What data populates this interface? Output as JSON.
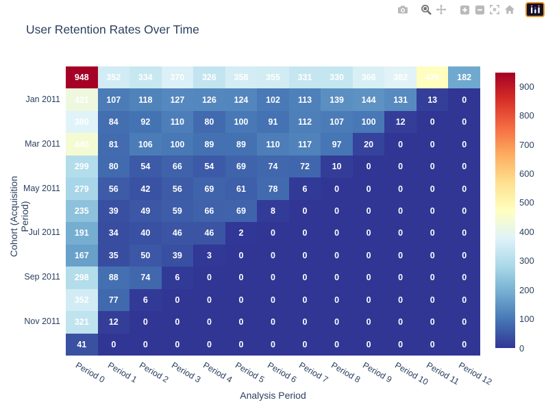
{
  "chart_data": {
    "type": "heatmap",
    "title": "User Retention Rates Over Time",
    "xlabel": "Analysis Period",
    "ylabel": "Cohort (Acquisition Period)",
    "x_ticks": [
      "Period 0",
      "Period 1",
      "Period 2",
      "Period 3",
      "Period 4",
      "Period 5",
      "Period 6",
      "Period 7",
      "Period 8",
      "Period 9",
      "Period 10",
      "Period 11",
      "Period 12"
    ],
    "y_ticks": [
      "",
      "Jan 2011",
      "",
      "Mar 2011",
      "",
      "May 2011",
      "",
      "Jul 2011",
      "",
      "Sep 2011",
      "",
      "Nov 2011",
      ""
    ],
    "z": [
      [
        948,
        352,
        334,
        370,
        326,
        358,
        355,
        331,
        330,
        366,
        382,
        476,
        182
      ],
      [
        421,
        107,
        118,
        127,
        126,
        124,
        102,
        113,
        139,
        144,
        131,
        13,
        0
      ],
      [
        380,
        84,
        92,
        110,
        80,
        100,
        91,
        112,
        107,
        100,
        12,
        0,
        0
      ],
      [
        440,
        81,
        106,
        100,
        89,
        89,
        110,
        117,
        97,
        20,
        0,
        0,
        0
      ],
      [
        299,
        80,
        54,
        66,
        54,
        69,
        74,
        72,
        10,
        0,
        0,
        0,
        0
      ],
      [
        279,
        56,
        42,
        56,
        69,
        61,
        78,
        6,
        0,
        0,
        0,
        0,
        0
      ],
      [
        235,
        39,
        49,
        59,
        66,
        69,
        8,
        0,
        0,
        0,
        0,
        0,
        0
      ],
      [
        191,
        34,
        40,
        46,
        46,
        2,
        0,
        0,
        0,
        0,
        0,
        0,
        0
      ],
      [
        167,
        35,
        50,
        39,
        3,
        0,
        0,
        0,
        0,
        0,
        0,
        0,
        0
      ],
      [
        298,
        88,
        74,
        6,
        0,
        0,
        0,
        0,
        0,
        0,
        0,
        0,
        0
      ],
      [
        352,
        77,
        6,
        0,
        0,
        0,
        0,
        0,
        0,
        0,
        0,
        0,
        0
      ],
      [
        321,
        12,
        0,
        0,
        0,
        0,
        0,
        0,
        0,
        0,
        0,
        0,
        0
      ],
      [
        41,
        0,
        0,
        0,
        0,
        0,
        0,
        0,
        0,
        0,
        0,
        0,
        0
      ]
    ],
    "zmin": 0,
    "zmax": 948,
    "colorscale": [
      [
        0.0,
        "#313695"
      ],
      [
        0.1,
        "#4575b4"
      ],
      [
        0.2,
        "#74add1"
      ],
      [
        0.3,
        "#abd9e9"
      ],
      [
        0.4,
        "#e0f3f8"
      ],
      [
        0.5,
        "#ffffbf"
      ],
      [
        0.6,
        "#fee090"
      ],
      [
        0.7,
        "#fdae61"
      ],
      [
        0.8,
        "#f46d43"
      ],
      [
        0.9,
        "#d73027"
      ],
      [
        1.0,
        "#a50026"
      ]
    ],
    "colorbar_ticks": [
      0,
      100,
      200,
      300,
      400,
      500,
      600,
      700,
      800,
      900
    ],
    "legend_position": "right",
    "grid": false,
    "cell_text_color": "#ffffff"
  },
  "colors": {
    "text": "#2a3f5f",
    "background": "#ffffff",
    "modebar_icon": "#b9b9b9",
    "modebar_icon_active": "#717171",
    "logo_border": "#e9961a",
    "logo_background": "#13102a"
  },
  "modebar": {
    "buttons": [
      {
        "name": "download-plot-button",
        "icon": "camera-icon",
        "group": 0,
        "active": false
      },
      {
        "name": "zoom-mode-button",
        "icon": "magnifier-zoom-icon",
        "group": 1,
        "active": true
      },
      {
        "name": "pan-mode-button",
        "icon": "pan-arrows-icon",
        "group": 1,
        "active": false
      },
      {
        "name": "zoom-in-button",
        "icon": "zoom-in-square-icon",
        "group": 2,
        "active": false
      },
      {
        "name": "zoom-out-button",
        "icon": "zoom-out-square-icon",
        "group": 2,
        "active": false
      },
      {
        "name": "autoscale-button",
        "icon": "autoscale-icon",
        "group": 2,
        "active": false
      },
      {
        "name": "reset-axes-button",
        "icon": "home-icon",
        "group": 2,
        "active": false
      },
      {
        "name": "plotly-logo-button",
        "icon": "plotly-logo-icon",
        "group": 3,
        "active": false
      }
    ]
  }
}
